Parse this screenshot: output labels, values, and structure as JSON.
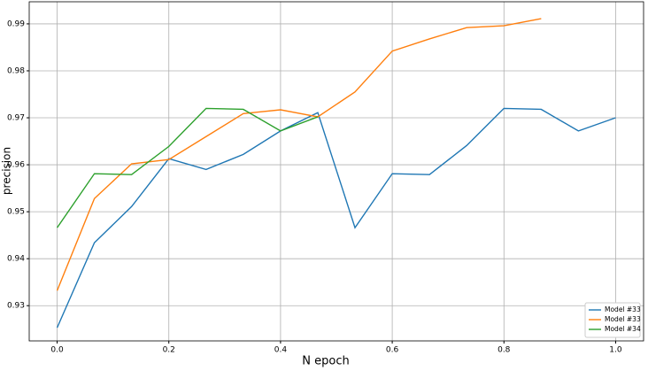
{
  "chart_data": {
    "type": "line",
    "xlabel": "N epoch",
    "ylabel": "precision",
    "x": [
      0,
      0.0667,
      0.1333,
      0.2,
      0.2667,
      0.3333,
      0.4,
      0.4667,
      0.5333,
      0.6,
      0.6667,
      0.7333,
      0.8,
      0.8667,
      0.9333,
      1
    ],
    "series": [
      {
        "name": "Model #33",
        "color": "#1f77b4",
        "values": [
          0.9253,
          0.9434,
          0.9511,
          0.9613,
          0.959,
          0.9622,
          0.9672,
          0.9711,
          0.9466,
          0.9581,
          0.9579,
          0.9641,
          0.972,
          0.9718,
          0.9672,
          0.97
        ]
      },
      {
        "name": "Model #33",
        "color": "#ff7f0e",
        "values": [
          0.9332,
          0.9528,
          0.9602,
          0.9611,
          0.966,
          0.9709,
          0.9717,
          0.9702,
          0.9755,
          0.9842,
          0.9868,
          0.9892,
          0.9896,
          0.9911,
          null,
          null
        ]
      },
      {
        "name": "Model #34",
        "color": "#2ca02c",
        "values": [
          0.9466,
          0.9581,
          0.9579,
          0.9639,
          0.972,
          0.9718,
          0.9672,
          0.9702,
          null,
          null,
          null,
          null,
          null,
          null,
          null,
          null
        ]
      }
    ],
    "xlim": [
      -0.05,
      1.05
    ],
    "ylim": [
      0.9225,
      0.9947
    ],
    "xticks": [
      {
        "value": 0,
        "label": "0.0"
      },
      {
        "value": 0.2,
        "label": "0.2"
      },
      {
        "value": 0.4,
        "label": "0.4"
      },
      {
        "value": 0.6,
        "label": "0.6"
      },
      {
        "value": 0.8,
        "label": "0.8"
      },
      {
        "value": 1,
        "label": "1.0"
      }
    ],
    "yticks": [
      0.93,
      0.94,
      0.95,
      0.96,
      0.97,
      0.98,
      0.99
    ],
    "grid": true,
    "legend": "lower right"
  }
}
